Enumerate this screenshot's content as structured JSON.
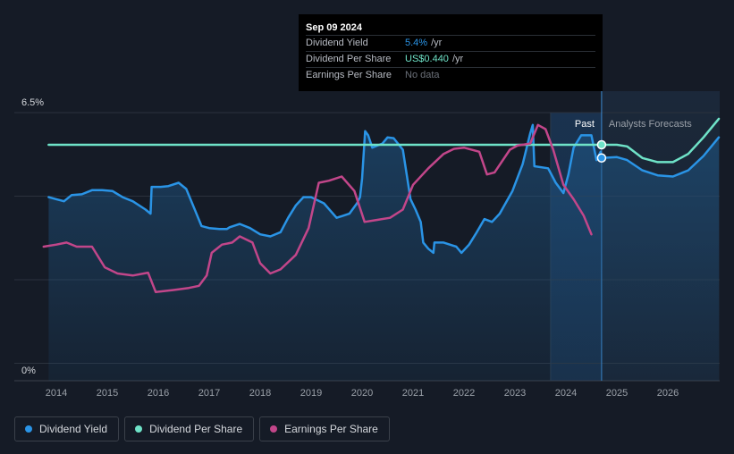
{
  "tooltip": {
    "date": "Sep 09 2024",
    "rows": [
      {
        "label": "Dividend Yield",
        "value": "5.4%",
        "unit": "/yr"
      },
      {
        "label": "Dividend Per Share",
        "value": "US$0.440",
        "unit": "/yr"
      },
      {
        "label": "Earnings Per Share",
        "value": "No data",
        "unit": ""
      }
    ]
  },
  "legend": [
    {
      "label": "Dividend Yield",
      "color": "#2a94e6"
    },
    {
      "label": "Dividend Per Share",
      "color": "#6fe3c8"
    },
    {
      "label": "Earnings Per Share",
      "color": "#c2468a"
    }
  ],
  "chart_data": {
    "type": "line",
    "y_tick_labels": [
      "6.5%",
      "0%"
    ],
    "ylim": [
      0,
      6.5
    ],
    "xlim": [
      2013.8,
      2027.0
    ],
    "x_ticks": [
      "2014",
      "2015",
      "2016",
      "2017",
      "2018",
      "2019",
      "2020",
      "2021",
      "2022",
      "2023",
      "2024",
      "2025",
      "2026"
    ],
    "period_labels": {
      "past": "Past",
      "forecast": "Analysts Forecasts"
    },
    "forecast_start": 2024.7,
    "highlight_band": [
      2023.7,
      2024.7
    ],
    "grid": true,
    "series": [
      {
        "name": "Dividend Yield",
        "color": "#2a94e6",
        "filled": true,
        "points": [
          [
            2013.85,
            4.45
          ],
          [
            2014.0,
            4.4
          ],
          [
            2014.15,
            4.35
          ],
          [
            2014.3,
            4.5
          ],
          [
            2014.5,
            4.52
          ],
          [
            2014.7,
            4.62
          ],
          [
            2014.9,
            4.62
          ],
          [
            2015.1,
            4.6
          ],
          [
            2015.3,
            4.45
          ],
          [
            2015.5,
            4.35
          ],
          [
            2015.75,
            4.15
          ],
          [
            2015.85,
            4.05
          ],
          [
            2015.87,
            4.7
          ],
          [
            2016.05,
            4.7
          ],
          [
            2016.2,
            4.72
          ],
          [
            2016.4,
            4.8
          ],
          [
            2016.55,
            4.65
          ],
          [
            2016.7,
            4.2
          ],
          [
            2016.85,
            3.75
          ],
          [
            2017.0,
            3.7
          ],
          [
            2017.2,
            3.68
          ],
          [
            2017.35,
            3.68
          ],
          [
            2017.4,
            3.72
          ],
          [
            2017.6,
            3.8
          ],
          [
            2017.8,
            3.7
          ],
          [
            2018.0,
            3.55
          ],
          [
            2018.2,
            3.5
          ],
          [
            2018.4,
            3.6
          ],
          [
            2018.55,
            3.95
          ],
          [
            2018.7,
            4.25
          ],
          [
            2018.85,
            4.45
          ],
          [
            2019.0,
            4.45
          ],
          [
            2019.25,
            4.3
          ],
          [
            2019.5,
            3.95
          ],
          [
            2019.75,
            4.05
          ],
          [
            2019.9,
            4.3
          ],
          [
            2019.96,
            4.45
          ],
          [
            2020.0,
            4.9
          ],
          [
            2020.06,
            6.05
          ],
          [
            2020.12,
            5.95
          ],
          [
            2020.2,
            5.65
          ],
          [
            2020.3,
            5.7
          ],
          [
            2020.4,
            5.75
          ],
          [
            2020.5,
            5.9
          ],
          [
            2020.62,
            5.88
          ],
          [
            2020.8,
            5.6
          ],
          [
            2020.95,
            4.4
          ],
          [
            2021.05,
            4.15
          ],
          [
            2021.15,
            3.85
          ],
          [
            2021.2,
            3.35
          ],
          [
            2021.3,
            3.2
          ],
          [
            2021.4,
            3.1
          ],
          [
            2021.42,
            3.35
          ],
          [
            2021.6,
            3.35
          ],
          [
            2021.85,
            3.25
          ],
          [
            2021.95,
            3.1
          ],
          [
            2022.1,
            3.3
          ],
          [
            2022.25,
            3.6
          ],
          [
            2022.4,
            3.92
          ],
          [
            2022.55,
            3.85
          ],
          [
            2022.7,
            4.05
          ],
          [
            2022.95,
            4.6
          ],
          [
            2023.15,
            5.25
          ],
          [
            2023.3,
            6.0
          ],
          [
            2023.35,
            6.2
          ],
          [
            2023.38,
            5.2
          ],
          [
            2023.65,
            5.15
          ],
          [
            2023.8,
            4.8
          ],
          [
            2023.95,
            4.55
          ],
          [
            2024.05,
            5.0
          ],
          [
            2024.15,
            5.65
          ],
          [
            2024.3,
            5.95
          ],
          [
            2024.5,
            5.95
          ],
          [
            2024.6,
            5.35
          ],
          [
            2024.68,
            5.55
          ],
          [
            2024.7,
            5.4
          ],
          [
            2025.0,
            5.42
          ],
          [
            2025.2,
            5.35
          ],
          [
            2025.5,
            5.1
          ],
          [
            2025.8,
            4.98
          ],
          [
            2026.1,
            4.95
          ],
          [
            2026.4,
            5.1
          ],
          [
            2026.7,
            5.45
          ],
          [
            2027.0,
            5.9
          ]
        ]
      },
      {
        "name": "Dividend Per Share",
        "color": "#6fe3c8",
        "filled": false,
        "points": [
          [
            2013.85,
            5.72
          ],
          [
            2024.7,
            5.72
          ],
          [
            2025.0,
            5.72
          ],
          [
            2025.2,
            5.68
          ],
          [
            2025.5,
            5.4
          ],
          [
            2025.8,
            5.3
          ],
          [
            2026.1,
            5.3
          ],
          [
            2026.4,
            5.5
          ],
          [
            2026.7,
            5.9
          ],
          [
            2027.0,
            6.35
          ]
        ]
      },
      {
        "name": "Earnings Per Share",
        "color": "#c2468a",
        "filled": false,
        "points": [
          [
            2013.75,
            3.25
          ],
          [
            2014.0,
            3.3
          ],
          [
            2014.2,
            3.35
          ],
          [
            2014.4,
            3.25
          ],
          [
            2014.7,
            3.25
          ],
          [
            2014.95,
            2.75
          ],
          [
            2015.2,
            2.6
          ],
          [
            2015.5,
            2.55
          ],
          [
            2015.8,
            2.62
          ],
          [
            2015.95,
            2.15
          ],
          [
            2016.3,
            2.2
          ],
          [
            2016.6,
            2.25
          ],
          [
            2016.8,
            2.3
          ],
          [
            2016.95,
            2.55
          ],
          [
            2017.05,
            3.1
          ],
          [
            2017.25,
            3.3
          ],
          [
            2017.45,
            3.35
          ],
          [
            2017.6,
            3.5
          ],
          [
            2017.85,
            3.35
          ],
          [
            2018.0,
            2.85
          ],
          [
            2018.2,
            2.6
          ],
          [
            2018.4,
            2.7
          ],
          [
            2018.7,
            3.05
          ],
          [
            2018.95,
            3.7
          ],
          [
            2019.15,
            4.8
          ],
          [
            2019.35,
            4.85
          ],
          [
            2019.6,
            4.95
          ],
          [
            2019.85,
            4.6
          ],
          [
            2020.05,
            3.85
          ],
          [
            2020.3,
            3.9
          ],
          [
            2020.55,
            3.95
          ],
          [
            2020.8,
            4.15
          ],
          [
            2021.0,
            4.75
          ],
          [
            2021.3,
            5.15
          ],
          [
            2021.6,
            5.5
          ],
          [
            2021.8,
            5.62
          ],
          [
            2022.0,
            5.65
          ],
          [
            2022.3,
            5.55
          ],
          [
            2022.45,
            5.0
          ],
          [
            2022.6,
            5.05
          ],
          [
            2022.9,
            5.6
          ],
          [
            2023.05,
            5.7
          ],
          [
            2023.3,
            5.75
          ],
          [
            2023.45,
            6.2
          ],
          [
            2023.6,
            6.1
          ],
          [
            2023.75,
            5.6
          ],
          [
            2023.95,
            4.75
          ],
          [
            2024.15,
            4.4
          ],
          [
            2024.35,
            4.0
          ],
          [
            2024.5,
            3.55
          ]
        ]
      }
    ],
    "markers": [
      {
        "series": "Dividend Per Share",
        "x": 2024.7,
        "y": 5.72
      },
      {
        "series": "Dividend Yield",
        "x": 2024.7,
        "y": 5.4
      }
    ]
  }
}
